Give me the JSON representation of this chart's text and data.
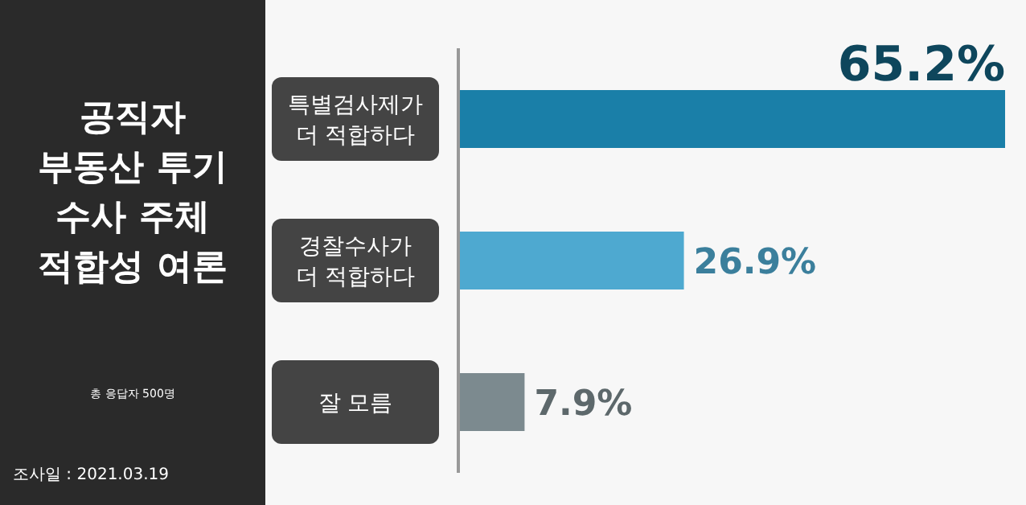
{
  "chart_data": {
    "type": "bar",
    "orientation": "horizontal",
    "title": "공직자\n부동산 투기\n수사 주체\n적합성 여론",
    "subtitle": "총 응답자 500명",
    "annotations": [
      "조사일 : 2021.03.19"
    ],
    "categories": [
      "특별검사제가\n더 적합하다",
      "경찰수사가\n더 적합하다",
      "잘 모름"
    ],
    "values": [
      65.2,
      26.9,
      7.9
    ],
    "colors": [
      "#1a7fa8",
      "#4ea9d0",
      "#7c8a8f"
    ],
    "value_labels": [
      "65.2%",
      "26.9%",
      "7.9%"
    ]
  }
}
